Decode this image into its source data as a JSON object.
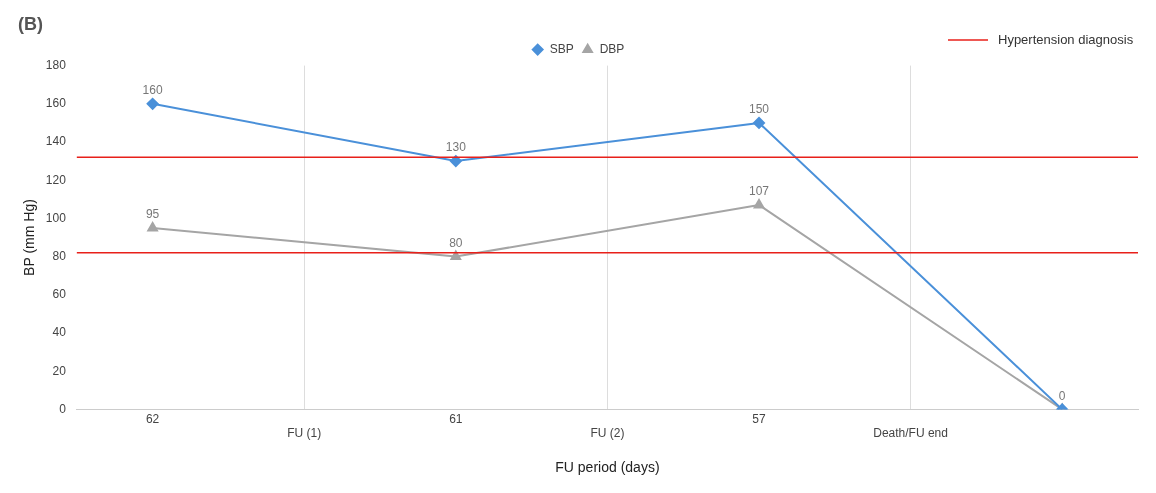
{
  "chart_data": {
    "type": "line",
    "title": "(B)",
    "xlabel": "FU period (days)",
    "ylabel": "BP (mm Hg)",
    "categories": [
      "62",
      "FU (1)",
      "61",
      "FU (2)",
      "57",
      "Death/FU end",
      null
    ],
    "series": [
      {
        "name": "SBP",
        "color": "#4a90d9",
        "marker": "diamond",
        "values": [
          160,
          null,
          130,
          null,
          150,
          null,
          0
        ],
        "value_labels": [
          "160",
          null,
          "130",
          null,
          "150",
          null,
          null
        ]
      },
      {
        "name": "DBP",
        "color": "#a5a5a5",
        "marker": "triangle",
        "values": [
          95,
          null,
          80,
          null,
          107,
          null,
          0
        ],
        "value_labels": [
          "95",
          null,
          "80",
          null,
          "107",
          null,
          "0"
        ]
      }
    ],
    "ylim": [
      0,
      180
    ],
    "yticks": [
      0,
      20,
      40,
      60,
      80,
      100,
      120,
      140,
      160,
      180
    ],
    "ref_lines": [
      {
        "axis": "y",
        "value": 132,
        "color": "#e8201a",
        "label": "Hypertension diagnosis"
      },
      {
        "axis": "y",
        "value": 82,
        "color": "#e8201a"
      }
    ],
    "grid": "x",
    "legend": "top"
  }
}
